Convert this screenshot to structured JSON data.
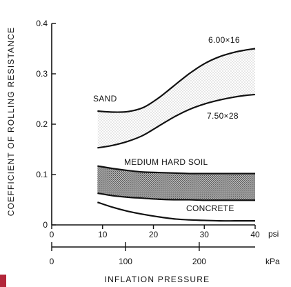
{
  "chart_data": {
    "type": "area",
    "ylabel": "COEFFICIENT OF ROLLING RESISTANCE",
    "xlabel": "INFLATION PRESSURE",
    "y_axis": {
      "ylim": [
        0,
        0.4
      ],
      "ticks": [
        "0",
        "0.1",
        "0.2",
        "0.3",
        "0.4"
      ]
    },
    "x_axis_psi": {
      "unit": "psi",
      "xlim": [
        0,
        40
      ],
      "ticks": [
        "0",
        "10",
        "20",
        "30",
        "40"
      ]
    },
    "x_axis_kpa": {
      "unit": "kPa",
      "xlim": [
        0,
        275.8
      ],
      "ticks": [
        "0",
        "100",
        "200"
      ]
    },
    "series": [
      {
        "name": "SAND",
        "style": "stippled band",
        "upper_label": "6.00×16",
        "lower_label": "7.50×28",
        "x": [
          9,
          12,
          15,
          18,
          21,
          24,
          27,
          30,
          33,
          36,
          38,
          40
        ],
        "upper": [
          0.226,
          0.224,
          0.225,
          0.233,
          0.252,
          0.276,
          0.3,
          0.32,
          0.334,
          0.343,
          0.347,
          0.35
        ],
        "lower": [
          0.153,
          0.158,
          0.166,
          0.178,
          0.196,
          0.214,
          0.229,
          0.24,
          0.248,
          0.254,
          0.257,
          0.259
        ]
      },
      {
        "name": "MEDIUM HARD SOIL",
        "style": "dense shaded band",
        "x": [
          9,
          12,
          15,
          18,
          21,
          24,
          27,
          30,
          33,
          36,
          38,
          40
        ],
        "upper": [
          0.117,
          0.112,
          0.108,
          0.105,
          0.104,
          0.103,
          0.102,
          0.102,
          0.102,
          0.102,
          0.102,
          0.102
        ],
        "lower": [
          0.063,
          0.058,
          0.055,
          0.053,
          0.051,
          0.05,
          0.05,
          0.049,
          0.049,
          0.049,
          0.049,
          0.049
        ]
      },
      {
        "name": "CONCRETE",
        "style": "line",
        "x": [
          9,
          12,
          15,
          18,
          21,
          24,
          27,
          30,
          33,
          36,
          38,
          40
        ],
        "values": [
          0.045,
          0.035,
          0.027,
          0.021,
          0.016,
          0.012,
          0.01,
          0.009,
          0.008,
          0.008,
          0.008,
          0.008
        ]
      }
    ],
    "grid": false,
    "legend": "none"
  },
  "colors": {
    "ink": "#111111",
    "paper": "#ffffff",
    "sand_stipple": "#8a8a8a",
    "soil_shade": "#6a6a6a",
    "corner_mark": "#b3263a"
  }
}
